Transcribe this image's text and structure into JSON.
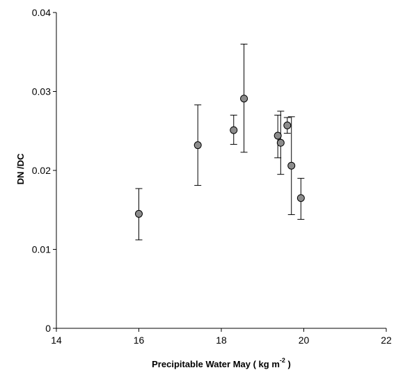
{
  "chart_data": {
    "type": "scatter",
    "title": "",
    "xlabel_main": "Precipitable Water May ( kg m",
    "xlabel_sup": "-2",
    "xlabel_end": " )",
    "ylabel": "DN /DC",
    "xlim": [
      14,
      22
    ],
    "ylim": [
      0,
      0.04
    ],
    "x_ticks": [
      14,
      16,
      18,
      20,
      22
    ],
    "y_ticks": [
      0,
      0.01,
      0.02,
      0.03,
      0.04
    ],
    "x_tick_labels": [
      "14",
      "16",
      "18",
      "20",
      "22"
    ],
    "y_tick_labels": [
      "0",
      "0.01",
      "0.02",
      "0.03",
      "0.04"
    ],
    "grid": false,
    "marker_fill": "#8c8c8c",
    "points": [
      {
        "x": 16.0,
        "y": 0.0145,
        "low": 0.0112,
        "high": 0.0177
      },
      {
        "x": 17.43,
        "y": 0.0232,
        "low": 0.0181,
        "high": 0.0283
      },
      {
        "x": 18.3,
        "y": 0.0251,
        "low": 0.0233,
        "high": 0.027
      },
      {
        "x": 18.55,
        "y": 0.0291,
        "low": 0.0223,
        "high": 0.036
      },
      {
        "x": 19.37,
        "y": 0.0244,
        "low": 0.0216,
        "high": 0.027
      },
      {
        "x": 19.44,
        "y": 0.0235,
        "low": 0.0195,
        "high": 0.0275
      },
      {
        "x": 19.6,
        "y": 0.0257,
        "low": 0.0247,
        "high": 0.0267
      },
      {
        "x": 19.7,
        "y": 0.0206,
        "low": 0.0144,
        "high": 0.0268
      },
      {
        "x": 19.93,
        "y": 0.0165,
        "low": 0.0138,
        "high": 0.019
      }
    ]
  }
}
